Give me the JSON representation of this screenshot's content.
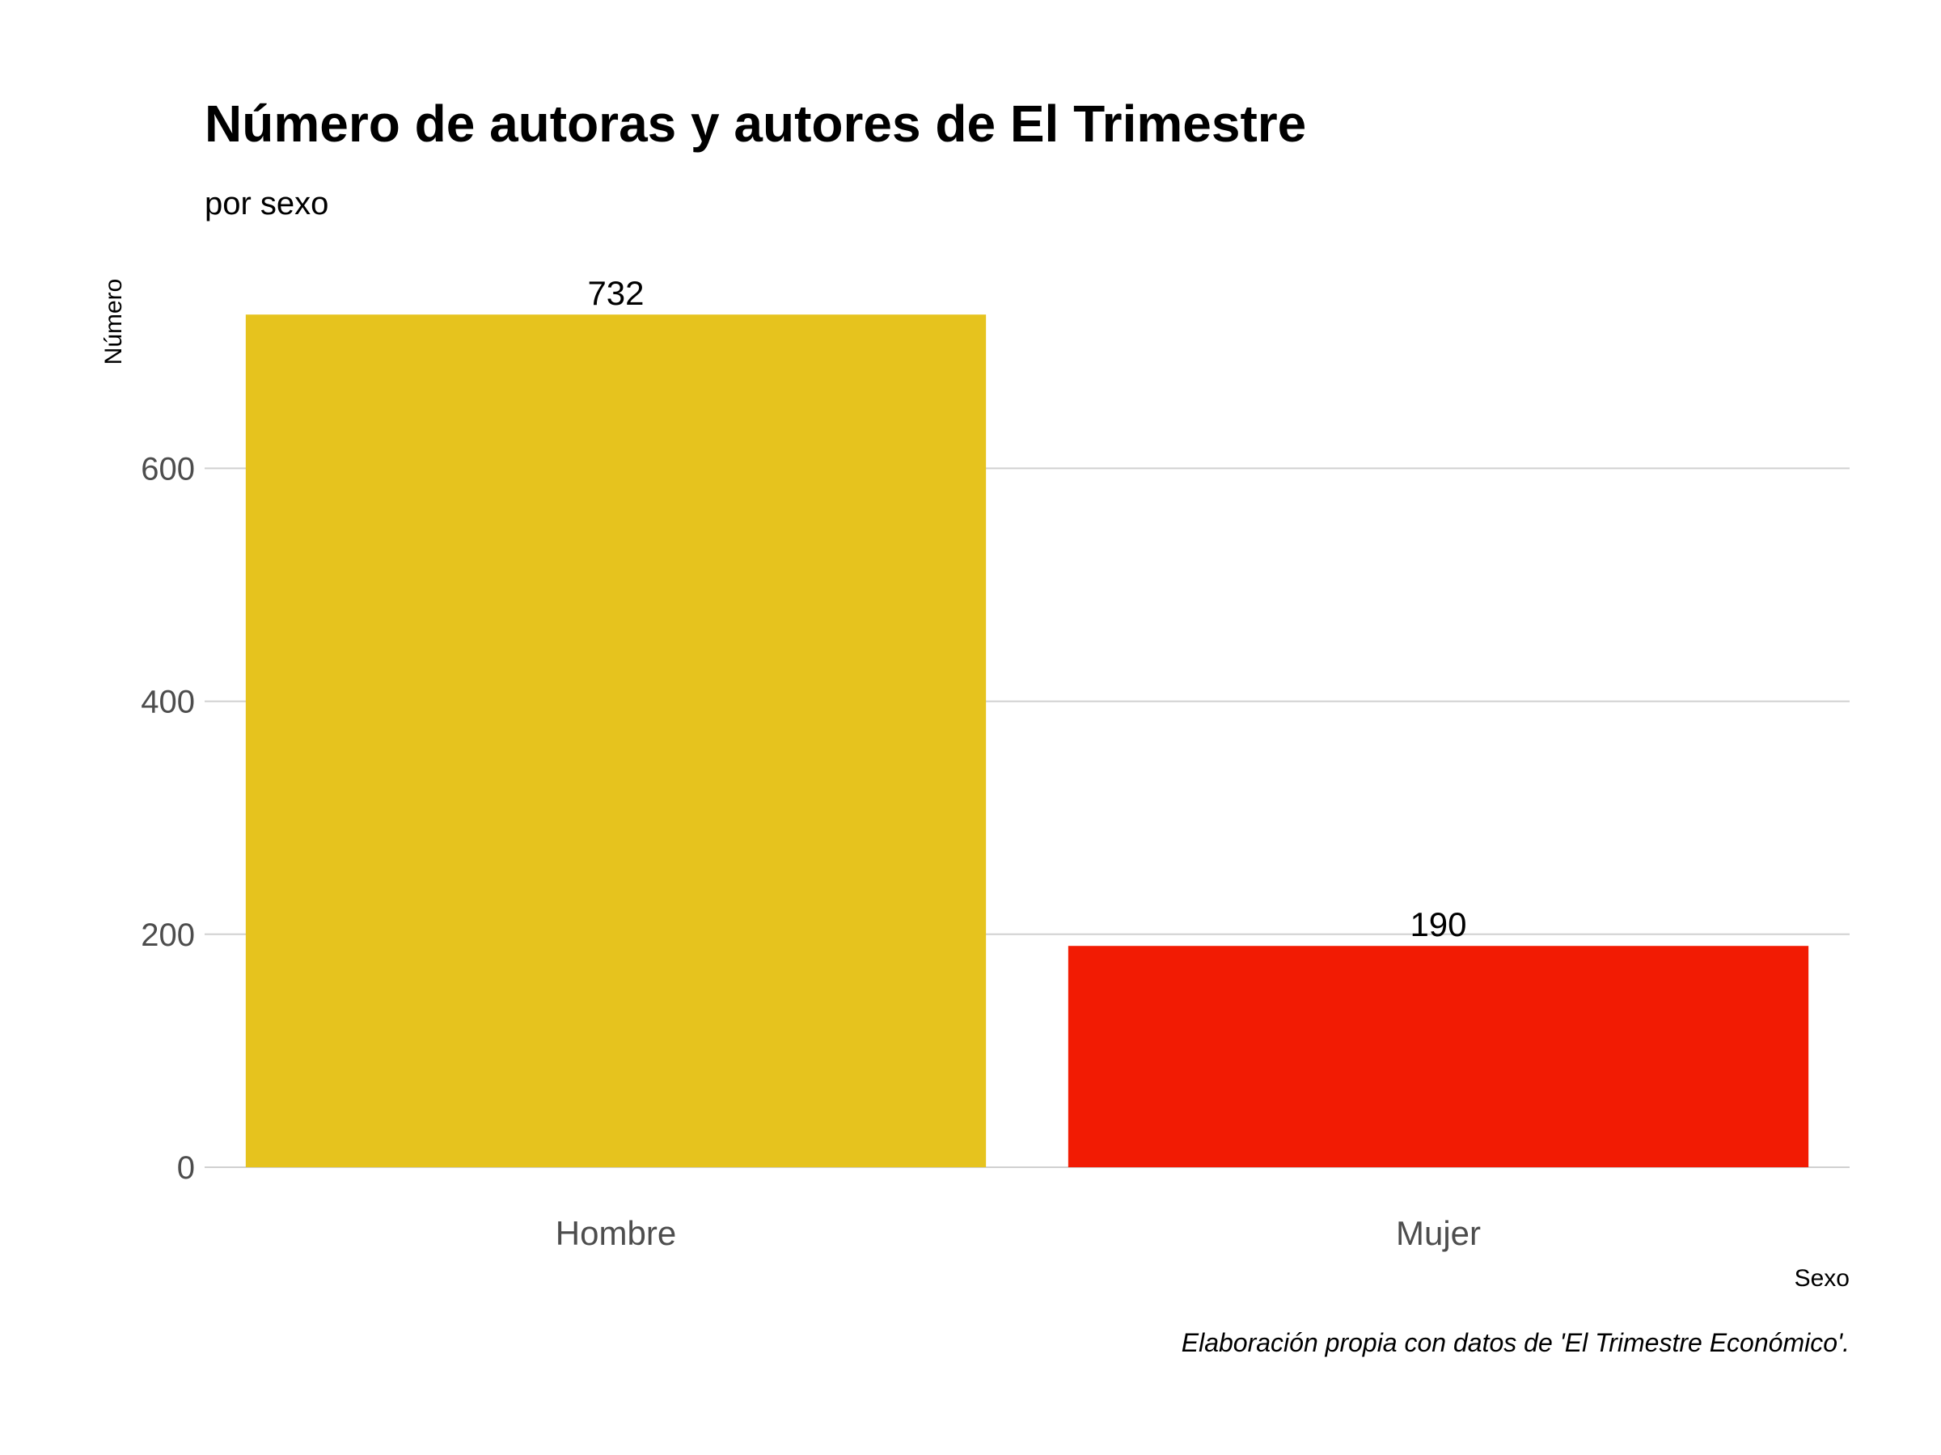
{
  "chart_data": {
    "type": "bar",
    "title": "Número de autoras y autores de El Trimestre",
    "subtitle": "por sexo",
    "xlabel": "Sexo",
    "ylabel": "Número",
    "caption": "Elaboración propia con datos de 'El Trimestre Económico'.",
    "categories": [
      "Hombre",
      "Mujer"
    ],
    "values": [
      732,
      190
    ],
    "data_labels": [
      "732",
      "190"
    ],
    "colors": [
      "#E6C31E",
      "#F21B03"
    ],
    "ylim": [
      0,
      780
    ],
    "yticks": [
      0,
      200,
      400,
      600
    ],
    "ytick_labels": [
      "0",
      "200",
      "400",
      "600"
    ],
    "grid": "horizontal",
    "legend": "none"
  }
}
